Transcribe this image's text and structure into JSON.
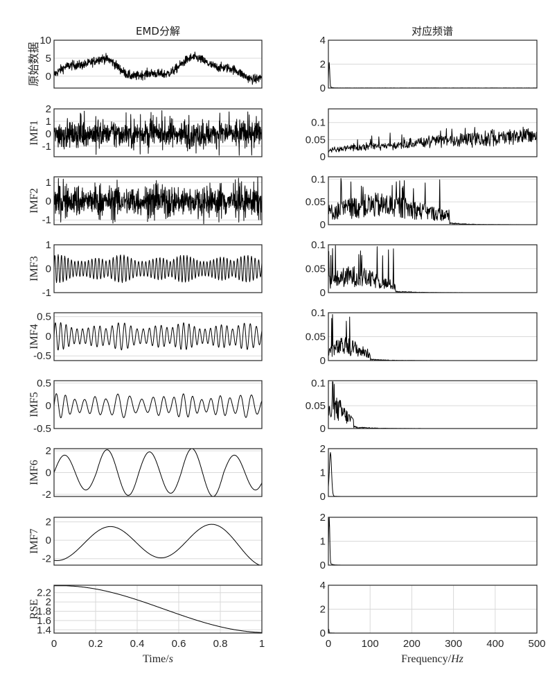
{
  "chart_data": [
    {
      "type": "line",
      "panel": "left",
      "title": "EMD分解",
      "xlabel": "Time/s",
      "xlim": [
        0,
        1
      ],
      "xticks": [
        0,
        0.2,
        0.4,
        0.6,
        0.8,
        1
      ],
      "xtick_labels": [
        "0",
        "0.2",
        "0.4",
        "0.6",
        "0.8",
        "1"
      ],
      "grid": true,
      "rows": [
        {
          "ylabel": "原始数据",
          "ylim": [
            -3.3,
            10
          ],
          "yticks": [
            0,
            5,
            10
          ],
          "ytick_labels": [
            "0",
            "5",
            "10"
          ],
          "kind": "raw",
          "amp": 2.2,
          "noise": 1.6
        },
        {
          "ylabel": "IMF1",
          "ylim": [
            -1.85,
            2
          ],
          "yticks": [
            -1,
            0,
            1,
            2
          ],
          "ytick_labels": [
            "-1",
            "0",
            "1",
            "2"
          ],
          "kind": "noise",
          "amp": 0.7,
          "spike": 1.9
        },
        {
          "ylabel": "IMF2",
          "ylim": [
            -1.25,
            1.3
          ],
          "yticks": [
            -1,
            0,
            1
          ],
          "ytick_labels": [
            "-1",
            "0",
            "1"
          ],
          "kind": "noise",
          "amp": 0.55,
          "spike": 1.2
        },
        {
          "ylabel": "IMF3",
          "ylim": [
            -1,
            1
          ],
          "yticks": [
            -1,
            0,
            1
          ],
          "ytick_labels": [
            "-1",
            "0",
            "1"
          ],
          "kind": "am",
          "freq": 60,
          "amp": 0.55
        },
        {
          "ylabel": "IMF4",
          "ylim": [
            -0.62,
            0.6
          ],
          "yticks": [
            -0.5,
            0,
            0.5
          ],
          "ytick_labels": [
            "-0.5",
            "0",
            "0.5"
          ],
          "kind": "am",
          "freq": 36,
          "amp": 0.33
        },
        {
          "ylabel": "IMF5",
          "ylim": [
            -0.5,
            0.55
          ],
          "yticks": [
            -0.5,
            0,
            0.5
          ],
          "ytick_labels": [
            "-0.5",
            "0",
            "0.5"
          ],
          "kind": "am",
          "freq": 20,
          "amp": 0.25
        },
        {
          "ylabel": "IMF6",
          "ylim": [
            -2.2,
            2.2
          ],
          "yticks": [
            -2,
            0,
            2
          ],
          "ytick_labels": [
            "-2",
            "0",
            "2"
          ],
          "kind": "sine",
          "freq": 4.9,
          "amp": 1.9,
          "phase": 0.0
        },
        {
          "ylabel": "IMF7",
          "ylim": [
            -2.7,
            2.5
          ],
          "yticks": [
            -2,
            0,
            2
          ],
          "ytick_labels": [
            "-2",
            "0",
            "2"
          ],
          "kind": "sine2",
          "freq": 2.0,
          "amp": 1.9
        },
        {
          "ylabel": "RSE",
          "ylim": [
            1.33,
            2.36
          ],
          "yticks": [
            1.4,
            1.6,
            1.8,
            2.0,
            2.2
          ],
          "ytick_labels": [
            "1.4",
            "1.6",
            "1.8",
            "2",
            "2.2"
          ],
          "kind": "residual",
          "start": 2.35,
          "end": 1.34
        }
      ]
    },
    {
      "type": "line",
      "panel": "right",
      "title": "对应频谱",
      "xlabel": "Frequency/Hz",
      "xlim": [
        0,
        500
      ],
      "xticks": [
        0,
        100,
        200,
        300,
        400,
        500
      ],
      "xtick_labels": [
        "0",
        "100",
        "200",
        "300",
        "400",
        "500"
      ],
      "grid": true,
      "rows": [
        {
          "ylim": [
            0,
            4
          ],
          "yticks": [
            0,
            2,
            4
          ],
          "ytick_labels": [
            "0",
            "2",
            "4"
          ],
          "peak_hz": 2,
          "peak": 2.0,
          "band": [
            0,
            500
          ],
          "level": 0.03
        },
        {
          "ylim": [
            0,
            0.14
          ],
          "yticks": [
            0,
            0.05,
            0.1
          ],
          "ytick_labels": [
            "0",
            "0.05",
            "0.1"
          ],
          "band": [
            0,
            500
          ],
          "level": 0.02,
          "rise": true
        },
        {
          "ylim": [
            0,
            0.105
          ],
          "yticks": [
            0,
            0.05,
            0.1
          ],
          "ytick_labels": [
            "0",
            "0.05",
            "0.1"
          ],
          "band": [
            0,
            290
          ],
          "center": 120,
          "level": 0.05
        },
        {
          "ylim": [
            0,
            0.1
          ],
          "yticks": [
            0,
            0.05,
            0.1
          ],
          "ytick_labels": [
            "0",
            "0.05",
            "0.1"
          ],
          "band": [
            0,
            160
          ],
          "center": 60,
          "level": 0.04
        },
        {
          "ylim": [
            0,
            0.1
          ],
          "yticks": [
            0,
            0.05,
            0.1
          ],
          "ytick_labels": [
            "0",
            "0.05",
            "0.1"
          ],
          "band": [
            0,
            100
          ],
          "center": 40,
          "level": 0.035
        },
        {
          "ylim": [
            0,
            0.105
          ],
          "yticks": [
            0,
            0.05,
            0.1
          ],
          "ytick_labels": [
            "0",
            "0.05",
            "0.1"
          ],
          "band": [
            0,
            60
          ],
          "center": 18,
          "level": 0.05
        },
        {
          "ylim": [
            0,
            2
          ],
          "yticks": [
            0,
            1,
            2
          ],
          "ytick_labels": [
            "0",
            "1",
            "2"
          ],
          "peak_hz": 5,
          "peak": 1.78
        },
        {
          "ylim": [
            0,
            2
          ],
          "yticks": [
            0,
            1,
            2
          ],
          "ytick_labels": [
            "0",
            "1",
            "2"
          ],
          "peak_hz": 2,
          "peak": 2.0
        },
        {
          "ylim": [
            0,
            4
          ],
          "yticks": [
            0,
            2,
            4
          ],
          "ytick_labels": [
            "0",
            "2",
            "4"
          ],
          "peak_hz": 0.5,
          "peak": 0.4
        }
      ]
    }
  ],
  "figure": {
    "left_title": "EMD分解",
    "right_title": "对应频谱",
    "left_xlabel": "Time/",
    "left_xlabel_italic": "s",
    "right_xlabel": "Frequency/",
    "right_xlabel_italic": "Hz",
    "line_color": "#000000",
    "grid_color": "#d9d9d9",
    "axis_color": "#262626"
  }
}
